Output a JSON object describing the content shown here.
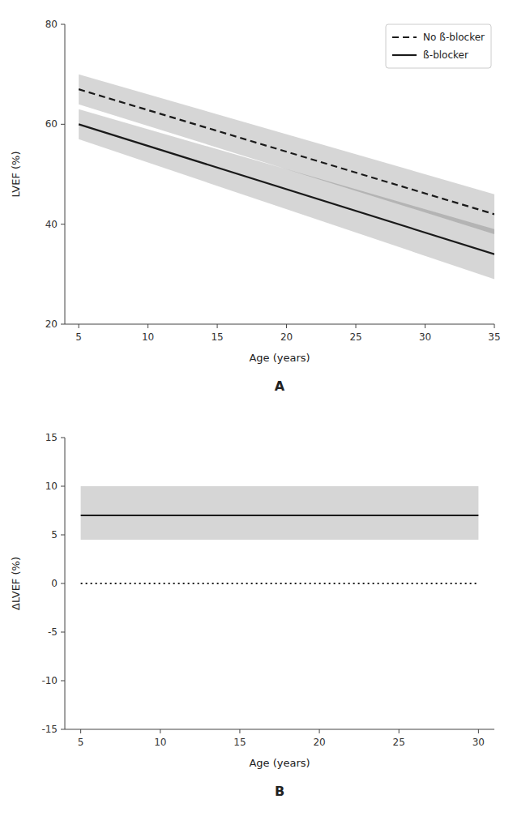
{
  "chart_data": [
    {
      "type": "line",
      "title": "A",
      "xlabel": "Age (years)",
      "ylabel": "LVEF (%)",
      "x": [
        5,
        35
      ],
      "xlim": [
        4,
        35
      ],
      "ylim": [
        20,
        80
      ],
      "xticks": [
        5,
        10,
        15,
        20,
        25,
        30,
        35
      ],
      "yticks": [
        20,
        40,
        60,
        80
      ],
      "legend": "upper right",
      "series": [
        {
          "name": "No ß-blocker",
          "color": "#1a1a1a",
          "line_style": "dashed",
          "values": [
            67,
            42
          ],
          "ci_upper": [
            70,
            46
          ],
          "ci_lower": [
            64,
            38
          ]
        },
        {
          "name": "ß-blocker",
          "color": "#1a1a1a",
          "line_style": "solid",
          "values": [
            60,
            34
          ],
          "ci_upper": [
            63,
            39
          ],
          "ci_lower": [
            57,
            29
          ]
        }
      ]
    },
    {
      "type": "line",
      "title": "B",
      "xlabel": "Age (years)",
      "ylabel": "ΔLVEF (%)",
      "x": [
        5,
        30
      ],
      "xlim": [
        4,
        31
      ],
      "ylim": [
        -15,
        15
      ],
      "xticks": [
        5,
        10,
        15,
        20,
        25,
        30
      ],
      "yticks": [
        -15,
        -10,
        -5,
        0,
        5,
        10,
        15
      ],
      "series": [
        {
          "color": "#1a1a1a",
          "line_style": "solid",
          "values": [
            7.0,
            7.0
          ],
          "ci_upper": [
            10.0,
            10.0
          ],
          "ci_lower": [
            4.5,
            4.5
          ]
        },
        {
          "color": "#1a1a1a",
          "line_style": "dotted",
          "values": [
            0,
            0
          ]
        }
      ]
    }
  ]
}
